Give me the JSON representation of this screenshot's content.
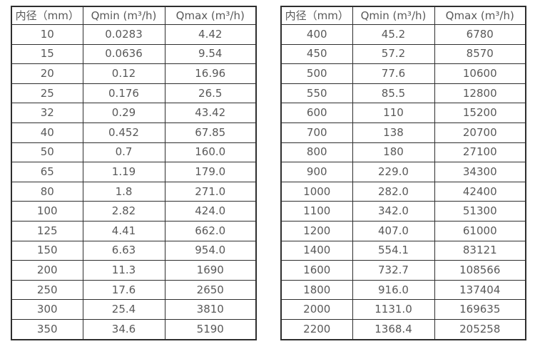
{
  "page": {
    "background_color": "#ffffff",
    "border_color": "#2e2e2e",
    "text_color": "#595959"
  },
  "tables": [
    {
      "name": "flow-rate-table-small-diameters",
      "headers": [
        "内径（mm）",
        "Qmin (m³/h)",
        "Qmax (m³/h)"
      ],
      "rows": [
        [
          "10",
          "0.0283",
          "4.42"
        ],
        [
          "15",
          "0.0636",
          "9.54"
        ],
        [
          "20",
          "0.12",
          "16.96"
        ],
        [
          "25",
          "0.176",
          "26.5"
        ],
        [
          "32",
          "0.29",
          "43.42"
        ],
        [
          "40",
          "0.452",
          "67.85"
        ],
        [
          "50",
          "0.7",
          "160.0"
        ],
        [
          "65",
          "1.19",
          "179.0"
        ],
        [
          "80",
          "1.8",
          "271.0"
        ],
        [
          "100",
          "2.82",
          "424.0"
        ],
        [
          "125",
          "4.41",
          "662.0"
        ],
        [
          "150",
          "6.63",
          "954.0"
        ],
        [
          "200",
          "11.3",
          "1690"
        ],
        [
          "250",
          "17.6",
          "2650"
        ],
        [
          "300",
          "25.4",
          "3810"
        ],
        [
          "350",
          "34.6",
          "5190"
        ]
      ]
    },
    {
      "name": "flow-rate-table-large-diameters",
      "headers": [
        "内径（mm）",
        "Qmin (m³/h)",
        "Qmax (m³/h)"
      ],
      "rows": [
        [
          "400",
          "45.2",
          "6780"
        ],
        [
          "450",
          "57.2",
          "8570"
        ],
        [
          "500",
          "77.6",
          "10600"
        ],
        [
          "550",
          "85.5",
          "12800"
        ],
        [
          "600",
          "110",
          "15200"
        ],
        [
          "700",
          "138",
          "20700"
        ],
        [
          "800",
          "180",
          "27100"
        ],
        [
          "900",
          "229.0",
          "34300"
        ],
        [
          "1000",
          "282.0",
          "42400"
        ],
        [
          "1100",
          "342.0",
          "51300"
        ],
        [
          "1200",
          "407.0",
          "61000"
        ],
        [
          "1400",
          "554.1",
          "83121"
        ],
        [
          "1600",
          "732.7",
          "108566"
        ],
        [
          "1800",
          "916.0",
          "137404"
        ],
        [
          "2000",
          "1131.0",
          "169635"
        ],
        [
          "2200",
          "1368.4",
          "205258"
        ]
      ]
    }
  ]
}
